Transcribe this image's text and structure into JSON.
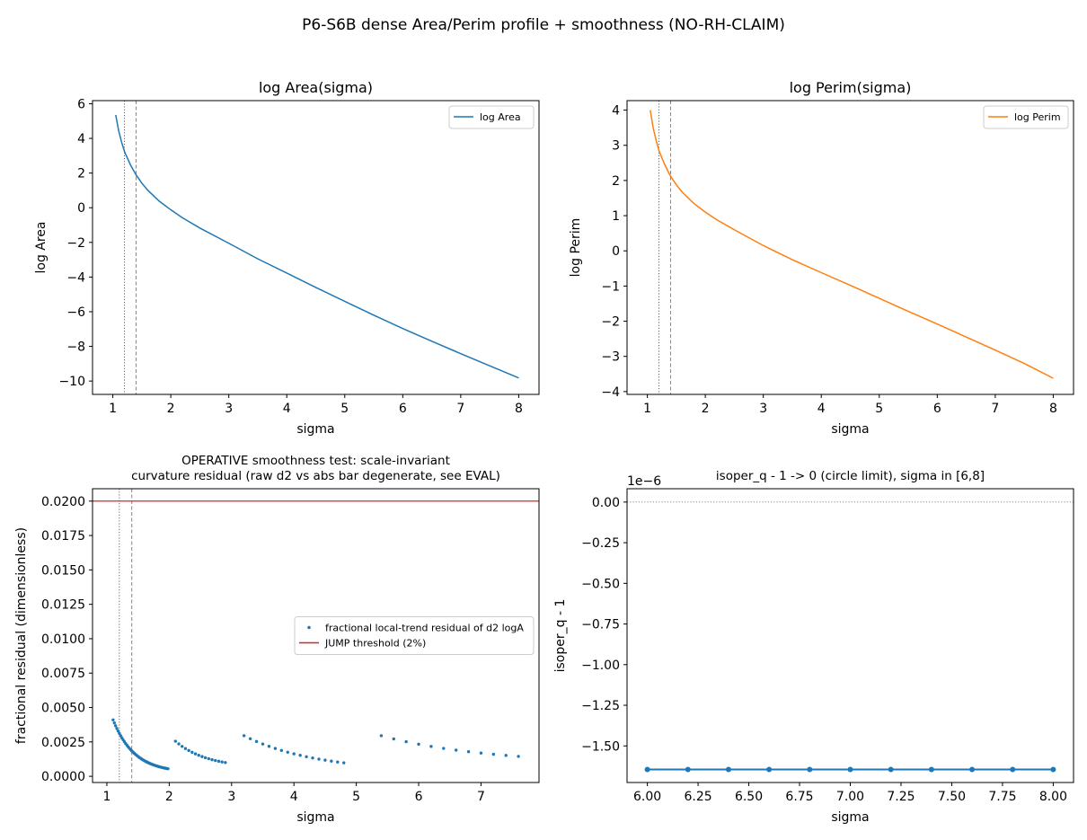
{
  "figure": {
    "suptitle": "P6-S6B dense Area/Perim profile + smoothness (NO-RH-CLAIM)"
  },
  "chart_data": [
    {
      "id": "area",
      "type": "line",
      "title": "log Area(sigma)",
      "xlabel": "sigma",
      "ylabel": "log Area",
      "xlim": [
        0.65,
        8.35
      ],
      "ylim": [
        -10.77,
        6.18
      ],
      "xticks": [
        1,
        2,
        3,
        4,
        5,
        6,
        7,
        8
      ],
      "yticks": [
        -10,
        -8,
        -6,
        -4,
        -2,
        0,
        2,
        4,
        6
      ],
      "legend": {
        "position": "top-right"
      },
      "vlines": [
        {
          "x": 1.2,
          "style": "dotted"
        },
        {
          "x": 1.4,
          "style": "dashed"
        }
      ],
      "series": [
        {
          "name": "log Area",
          "color": "#1f77b4",
          "x": [
            1.05,
            1.1,
            1.15,
            1.2,
            1.3,
            1.4,
            1.5,
            1.6,
            1.8,
            2.0,
            2.2,
            2.5,
            3.0,
            3.5,
            4.0,
            4.5,
            5.0,
            5.5,
            6.0,
            6.5,
            7.0,
            7.5,
            8.0
          ],
          "y": [
            5.35,
            4.45,
            3.8,
            3.25,
            2.5,
            1.9,
            1.42,
            1.02,
            0.38,
            -0.12,
            -0.58,
            -1.17,
            -2.05,
            -2.95,
            -3.77,
            -4.6,
            -5.4,
            -6.2,
            -6.97,
            -7.7,
            -8.42,
            -9.12,
            -9.82
          ]
        }
      ]
    },
    {
      "id": "perim",
      "type": "line",
      "title": "log Perim(sigma)",
      "xlabel": "sigma",
      "ylabel": "log Perim",
      "xlim": [
        0.65,
        8.35
      ],
      "ylim": [
        -4.08,
        4.27
      ],
      "xticks": [
        1,
        2,
        3,
        4,
        5,
        6,
        7,
        8
      ],
      "yticks": [
        -4,
        -3,
        -2,
        -1,
        0,
        1,
        2,
        3,
        4
      ],
      "legend": {
        "position": "top-right"
      },
      "vlines": [
        {
          "x": 1.2,
          "style": "dotted"
        },
        {
          "x": 1.4,
          "style": "dashed"
        }
      ],
      "series": [
        {
          "name": "log Perim",
          "color": "#ff7f0e",
          "x": [
            1.05,
            1.1,
            1.15,
            1.2,
            1.3,
            1.4,
            1.5,
            1.6,
            1.8,
            2.0,
            2.2,
            2.5,
            3.0,
            3.5,
            4.0,
            4.5,
            5.0,
            5.5,
            6.0,
            6.5,
            7.0,
            7.5,
            8.0
          ],
          "y": [
            4.0,
            3.5,
            3.15,
            2.85,
            2.45,
            2.12,
            1.88,
            1.67,
            1.35,
            1.1,
            0.88,
            0.6,
            0.15,
            -0.25,
            -0.62,
            -0.98,
            -1.35,
            -1.72,
            -2.08,
            -2.45,
            -2.82,
            -3.2,
            -3.62
          ]
        }
      ]
    },
    {
      "id": "residual",
      "type": "scatter",
      "title_lines": [
        "OPERATIVE smoothness test: scale-invariant",
        "curvature residual (raw d2 vs abs bar degenerate, see EVAL)"
      ],
      "xlabel": "sigma",
      "ylabel": "fractional residual (dimensionless)",
      "xlim": [
        0.77,
        7.93
      ],
      "ylim": [
        -0.00045,
        0.0209
      ],
      "xticks": [
        1,
        2,
        3,
        4,
        5,
        6,
        7
      ],
      "yticks": [
        0.0,
        0.0025,
        0.005,
        0.0075,
        0.01,
        0.0125,
        0.015,
        0.0175,
        0.02
      ],
      "ytick_labels": [
        "0.0000",
        "0.0025",
        "0.0050",
        "0.0075",
        "0.0100",
        "0.0125",
        "0.0150",
        "0.0175",
        "0.0200"
      ],
      "legend": {
        "position": "center-right"
      },
      "vlines": [
        {
          "x": 1.2,
          "style": "dotted"
        },
        {
          "x": 1.4,
          "style": "dashed"
        }
      ],
      "hlines": [
        {
          "y": 0.02,
          "color": "#d62728",
          "name": "JUMP threshold (2%)"
        }
      ],
      "series": [
        {
          "name": "fractional local-trend residual of d2 logA",
          "color": "#1f77b4",
          "segments": [
            {
              "x0": 1.1,
              "x1": 1.98,
              "count": 45,
              "y0": 0.0041,
              "y1": 0.00055,
              "k": 2.6
            },
            {
              "x0": 2.1,
              "x1": 2.9,
              "count": 16,
              "y0": 0.00255,
              "y1": 0.001,
              "k": 1.6
            },
            {
              "x0": 3.2,
              "x1": 4.8,
              "count": 17,
              "y0": 0.00295,
              "y1": 0.00098,
              "k": 1.4
            },
            {
              "x0": 5.4,
              "x1": 7.6,
              "count": 12,
              "y0": 0.00295,
              "y1": 0.00145,
              "k": 1.3
            }
          ]
        }
      ]
    },
    {
      "id": "isoper",
      "type": "line",
      "title": "isoper_q - 1 -> 0 (circle limit), sigma in [6,8]",
      "xlabel": "sigma",
      "ylabel": "isoper_q - 1",
      "offset_text": "1e−6",
      "xlim": [
        5.9,
        8.1
      ],
      "ylim": [
        -1.725,
        0.082
      ],
      "xticks": [
        6.0,
        6.25,
        6.5,
        6.75,
        7.0,
        7.25,
        7.5,
        7.75,
        8.0
      ],
      "xtick_labels": [
        "6.00",
        "6.25",
        "6.50",
        "6.75",
        "7.00",
        "7.25",
        "7.50",
        "7.75",
        "8.00"
      ],
      "yticks": [
        0.0,
        -0.25,
        -0.5,
        -0.75,
        -1.0,
        -1.25,
        -1.5
      ],
      "ytick_labels": [
        "0.00",
        "−0.25",
        "−0.50",
        "−0.75",
        "−1.00",
        "−1.25",
        "−1.50"
      ],
      "hlines": [
        {
          "y": 0.0,
          "style": "dotted"
        }
      ],
      "series": [
        {
          "name": "",
          "color": "#1f77b4",
          "x": [
            6.0,
            6.2,
            6.4,
            6.6,
            6.8,
            7.0,
            7.2,
            7.4,
            7.6,
            7.8,
            8.0
          ],
          "y": [
            -1.645,
            -1.645,
            -1.645,
            -1.645,
            -1.645,
            -1.645,
            -1.645,
            -1.645,
            -1.645,
            -1.645,
            -1.645
          ]
        }
      ]
    }
  ]
}
